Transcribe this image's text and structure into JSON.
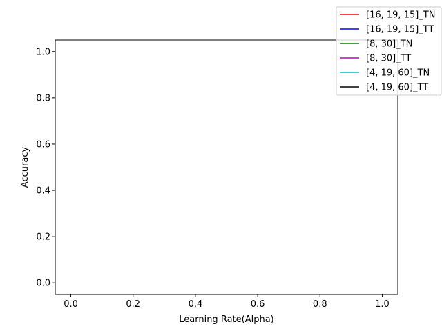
{
  "chart_data": {
    "type": "line",
    "title": "",
    "xlabel": "Learning Rate(Alpha)",
    "ylabel": "Accuracy",
    "xlim": [
      -0.05,
      1.05
    ],
    "ylim": [
      -0.05,
      1.05
    ],
    "xticks": [
      0.0,
      0.2,
      0.4,
      0.6,
      0.8,
      1.0
    ],
    "yticks": [
      0.0,
      0.2,
      0.4,
      0.6,
      0.8,
      1.0
    ],
    "xtick_labels": [
      "0.0",
      "0.2",
      "0.4",
      "0.6",
      "0.8",
      "1.0"
    ],
    "ytick_labels": [
      "0.0",
      "0.2",
      "0.4",
      "0.6",
      "0.8",
      "1.0"
    ],
    "grid": false,
    "legend_position": "top-right",
    "series": [
      {
        "name": "[16, 19, 15]_TN",
        "color": "#ff0000",
        "x": [],
        "y": []
      },
      {
        "name": "[16, 19, 15]_TT",
        "color": "#0000ff",
        "x": [],
        "y": []
      },
      {
        "name": "[8, 30]_TN",
        "color": "#008000",
        "x": [],
        "y": []
      },
      {
        "name": "[8, 30]_TT",
        "color": "#bf00bf",
        "x": [],
        "y": []
      },
      {
        "name": "[4, 19, 60]_TN",
        "color": "#00bfbf",
        "x": [],
        "y": []
      },
      {
        "name": "[4, 19, 60]_TT",
        "color": "#000000",
        "x": [],
        "y": []
      }
    ]
  }
}
